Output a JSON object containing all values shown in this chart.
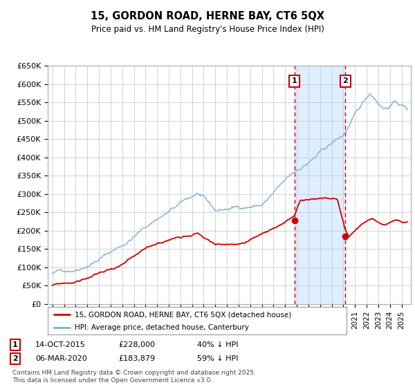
{
  "title": "15, GORDON ROAD, HERNE BAY, CT6 5QX",
  "subtitle": "Price paid vs. HM Land Registry's House Price Index (HPI)",
  "ylabel_ticks": [
    "£0",
    "£50K",
    "£100K",
    "£150K",
    "£200K",
    "£250K",
    "£300K",
    "£350K",
    "£400K",
    "£450K",
    "£500K",
    "£550K",
    "£600K",
    "£650K"
  ],
  "ylim": [
    0,
    650000
  ],
  "ytick_vals": [
    0,
    50000,
    100000,
    150000,
    200000,
    250000,
    300000,
    350000,
    400000,
    450000,
    500000,
    550000,
    600000,
    650000
  ],
  "xlim_start": 1994.6,
  "xlim_end": 2025.8,
  "sale1_date": 2015.79,
  "sale1_price": 228000,
  "sale2_date": 2020.18,
  "sale2_price": 183879,
  "legend1_text": "15, GORDON ROAD, HERNE BAY, CT6 5QX (detached house)",
  "legend2_text": "HPI: Average price, detached house, Canterbury",
  "footnote": "Contains HM Land Registry data © Crown copyright and database right 2025.\nThis data is licensed under the Open Government Licence v3.0.",
  "line_color_red": "#cc0000",
  "line_color_blue": "#7ab0d4",
  "dashed_color": "#cc0000",
  "highlight_color": "#ddeeff",
  "background_color": "#ffffff",
  "grid_color": "#cccccc"
}
